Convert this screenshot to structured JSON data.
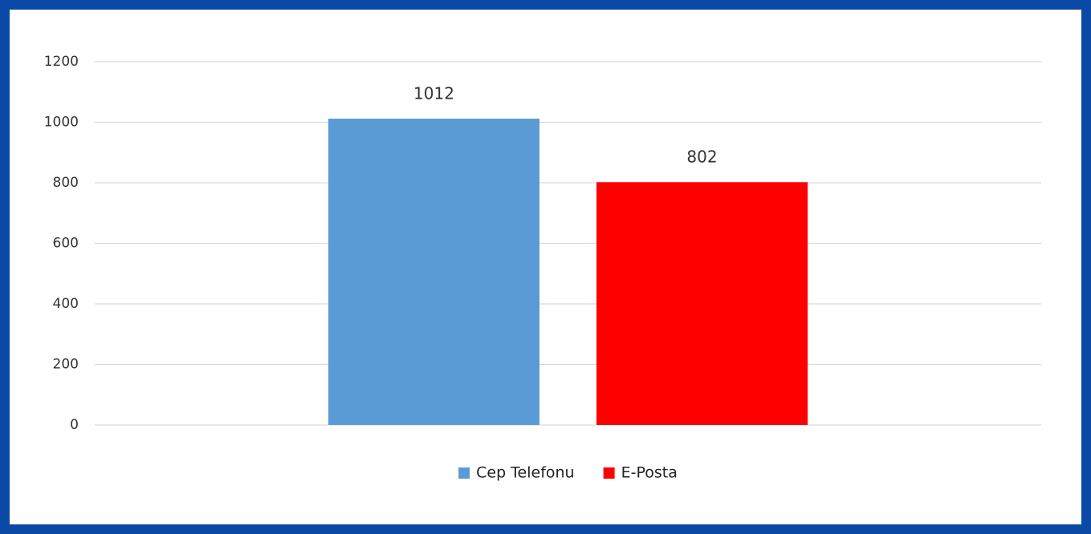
{
  "chart_data": {
    "type": "bar",
    "categories": [
      null
    ],
    "series": [
      {
        "name": "Cep Telefonu",
        "color": "#5b9bd5",
        "values": [
          1012
        ]
      },
      {
        "name": "E-Posta",
        "color": "#ff0000",
        "values": [
          802
        ]
      }
    ],
    "ylim": [
      0,
      1200
    ],
    "yticks": [
      0,
      200,
      400,
      600,
      800,
      1000,
      1200
    ],
    "grid": true,
    "legend": "bottom",
    "data_labels": true
  }
}
